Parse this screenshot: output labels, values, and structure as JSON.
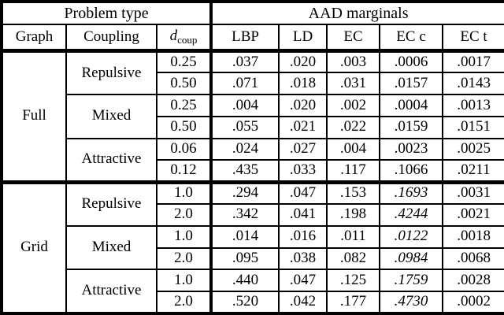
{
  "table": {
    "group_headers": [
      {
        "label": "Problem type",
        "colspan": 3
      },
      {
        "label": "AAD marginals",
        "colspan": 5
      }
    ],
    "column_headers": {
      "graph": "Graph",
      "coupling": "Coupling",
      "dcoup_main": "d",
      "dcoup_sub": "coup",
      "lbp": "LBP",
      "ld": "LD",
      "ec": "EC",
      "ecc": "EC c",
      "ect": "EC t"
    },
    "value_column_keys": [
      "lbp",
      "ld",
      "ec",
      "ecc",
      "ect"
    ],
    "colors": {
      "text": "#000000",
      "border": "#000000",
      "background": "#ffffff"
    },
    "rows": [
      {
        "graph": "Full",
        "graph_span": 6,
        "coupling": "Repulsive",
        "coupling_span": 2,
        "dcoup": "0.25",
        "values": [
          {
            "t": ".037"
          },
          {
            "t": ".020"
          },
          {
            "t": ".003"
          },
          {
            "t": ".0006",
            "bold": true
          },
          {
            "t": ".0017"
          }
        ]
      },
      {
        "dcoup": "0.50",
        "values": [
          {
            "t": ".071"
          },
          {
            "t": ".018"
          },
          {
            "t": ".031"
          },
          {
            "t": ".0157"
          },
          {
            "t": ".0143",
            "bold": true
          }
        ]
      },
      {
        "coupling": "Mixed",
        "coupling_span": 2,
        "dcoup": "0.25",
        "values": [
          {
            "t": ".004"
          },
          {
            "t": ".020"
          },
          {
            "t": ".002"
          },
          {
            "t": ".0004",
            "bold": true
          },
          {
            "t": ".0013"
          }
        ]
      },
      {
        "dcoup": "0.50",
        "values": [
          {
            "t": ".055"
          },
          {
            "t": ".021"
          },
          {
            "t": ".022"
          },
          {
            "t": ".0159"
          },
          {
            "t": ".0151",
            "bold": true
          }
        ]
      },
      {
        "coupling": "Attractive",
        "coupling_span": 2,
        "dcoup": "0.06",
        "values": [
          {
            "t": ".024"
          },
          {
            "t": ".027"
          },
          {
            "t": ".004"
          },
          {
            "t": ".0023",
            "bold": true
          },
          {
            "t": ".0025"
          }
        ]
      },
      {
        "dcoup": "0.12",
        "values": [
          {
            "t": ".435"
          },
          {
            "t": ".033"
          },
          {
            "t": ".117"
          },
          {
            "t": ".1066"
          },
          {
            "t": ".0211",
            "bold": true
          }
        ]
      },
      {
        "graph": "Grid",
        "graph_span": 6,
        "coupling": "Repulsive",
        "coupling_span": 2,
        "dcoup": "1.0",
        "section_start": true,
        "values": [
          {
            "t": ".294"
          },
          {
            "t": ".047"
          },
          {
            "t": ".153"
          },
          {
            "t": ".1693",
            "italic": true
          },
          {
            "t": ".0031",
            "bold": true
          }
        ]
      },
      {
        "dcoup": "2.0",
        "values": [
          {
            "t": ".342"
          },
          {
            "t": ".041"
          },
          {
            "t": ".198"
          },
          {
            "t": ".4244",
            "italic": true
          },
          {
            "t": ".0021",
            "bold": true
          }
        ]
      },
      {
        "coupling": "Mixed",
        "coupling_span": 2,
        "dcoup": "1.0",
        "values": [
          {
            "t": ".014"
          },
          {
            "t": ".016"
          },
          {
            "t": ".011"
          },
          {
            "t": ".0122",
            "italic": true
          },
          {
            "t": ".0018",
            "bold": true
          }
        ]
      },
      {
        "dcoup": "2.0",
        "values": [
          {
            "t": ".095"
          },
          {
            "t": ".038"
          },
          {
            "t": ".082"
          },
          {
            "t": ".0984",
            "italic": true
          },
          {
            "t": ".0068",
            "bold": true
          }
        ]
      },
      {
        "coupling": "Attractive",
        "coupling_span": 2,
        "dcoup": "1.0",
        "values": [
          {
            "t": ".440"
          },
          {
            "t": ".047"
          },
          {
            "t": ".125"
          },
          {
            "t": ".1759",
            "italic": true
          },
          {
            "t": ".0028",
            "bold": true
          }
        ]
      },
      {
        "dcoup": "2.0",
        "values": [
          {
            "t": ".520"
          },
          {
            "t": ".042"
          },
          {
            "t": ".177"
          },
          {
            "t": ".4730",
            "italic": true
          },
          {
            "t": ".0002",
            "bold": true
          }
        ]
      }
    ]
  }
}
